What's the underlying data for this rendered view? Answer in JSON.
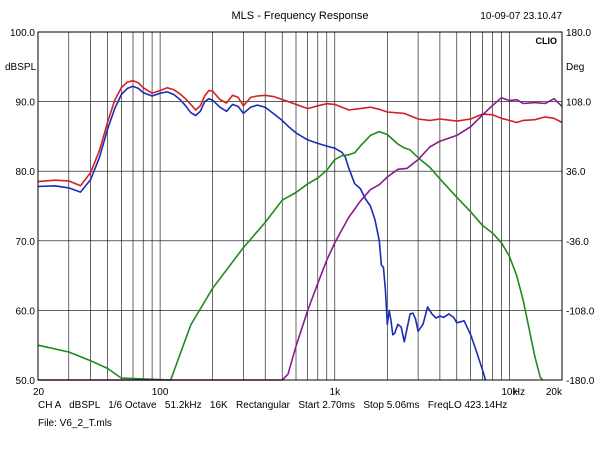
{
  "header": {
    "title": "MLS - Frequency Response",
    "datetime": "10-09-07 23.10.47",
    "logo": "CLIO"
  },
  "footer": {
    "settings": "CH A   dBSPL   1/6 Octave   51.2kHz   16K   Rectangular   Start 2.70ms   Stop 5.06ms   FreqLO 423.14Hz",
    "file": "File: V6_2_T.mls"
  },
  "chart_data": {
    "type": "line",
    "title": "MLS - Frequency Response",
    "xscale": "log",
    "xlim": [
      20,
      20000
    ],
    "ylim": [
      50,
      100
    ],
    "y2lim": [
      -180,
      180
    ],
    "ylabel": "dBSPL",
    "y2label": "Deg",
    "xunit": "Hz",
    "grid": true,
    "x_ticks": [
      {
        "value": 20,
        "label": "20"
      },
      {
        "value": 100,
        "label": "100"
      },
      {
        "value": 1000,
        "label": "1k"
      },
      {
        "value": 10000,
        "label": "10k"
      },
      {
        "value": 20000,
        "label": "20k"
      }
    ],
    "y_ticks": [
      "50.0",
      "60.0",
      "70.0",
      "80.0",
      "90.0",
      "100.0"
    ],
    "y2_ticks": [
      "-180.0",
      "-108.0",
      "-36.0",
      "36.0",
      "108.0",
      "180.0"
    ],
    "series": [
      {
        "color": "#d42020",
        "axis": "left",
        "points": [
          [
            20,
            78.5
          ],
          [
            25,
            78.7
          ],
          [
            30,
            78.6
          ],
          [
            35,
            77.9
          ],
          [
            40,
            79.8
          ],
          [
            45,
            83
          ],
          [
            50,
            87
          ],
          [
            55,
            90.2
          ],
          [
            60,
            92
          ],
          [
            65,
            92.8
          ],
          [
            70,
            93
          ],
          [
            75,
            92.7
          ],
          [
            80,
            92
          ],
          [
            90,
            91.2
          ],
          [
            100,
            91.6
          ],
          [
            110,
            92
          ],
          [
            120,
            91.7
          ],
          [
            130,
            91.1
          ],
          [
            140,
            90.4
          ],
          [
            150,
            89.6
          ],
          [
            160,
            88.8
          ],
          [
            170,
            89.4
          ],
          [
            180,
            90.8
          ],
          [
            190,
            91.6
          ],
          [
            200,
            91.5
          ],
          [
            220,
            90.3
          ],
          [
            240,
            89.8
          ],
          [
            260,
            90.9
          ],
          [
            280,
            90.6
          ],
          [
            300,
            89.4
          ],
          [
            330,
            90.6
          ],
          [
            360,
            90.8
          ],
          [
            400,
            90.9
          ],
          [
            450,
            90.7
          ],
          [
            500,
            90.3
          ],
          [
            600,
            89.6
          ],
          [
            700,
            89
          ],
          [
            800,
            89.4
          ],
          [
            900,
            89.7
          ],
          [
            1000,
            89.6
          ],
          [
            1100,
            89.2
          ],
          [
            1200,
            88.8
          ],
          [
            1400,
            89
          ],
          [
            1600,
            89.2
          ],
          [
            1800,
            88.9
          ],
          [
            2000,
            88.5
          ],
          [
            2500,
            88.3
          ],
          [
            3000,
            87.5
          ],
          [
            3500,
            87.3
          ],
          [
            4000,
            87.5
          ],
          [
            5000,
            87.2
          ],
          [
            6000,
            87.5
          ],
          [
            7000,
            88.2
          ],
          [
            8000,
            88.1
          ],
          [
            9000,
            87.6
          ],
          [
            10000,
            87.3
          ],
          [
            11000,
            87
          ],
          [
            12000,
            87.3
          ],
          [
            14000,
            87.4
          ],
          [
            16000,
            87.8
          ],
          [
            18000,
            87.6
          ],
          [
            20000,
            87
          ]
        ]
      },
      {
        "color": "#1a2bb5",
        "axis": "left",
        "points": [
          [
            20,
            77.8
          ],
          [
            25,
            77.9
          ],
          [
            30,
            77.6
          ],
          [
            35,
            77
          ],
          [
            40,
            78.8
          ],
          [
            45,
            82
          ],
          [
            50,
            86
          ],
          [
            55,
            89
          ],
          [
            60,
            91
          ],
          [
            65,
            91.9
          ],
          [
            70,
            92.2
          ],
          [
            75,
            91.9
          ],
          [
            80,
            91.3
          ],
          [
            90,
            90.8
          ],
          [
            100,
            91.2
          ],
          [
            110,
            91.4
          ],
          [
            120,
            91
          ],
          [
            130,
            90.3
          ],
          [
            140,
            89.4
          ],
          [
            150,
            88.4
          ],
          [
            160,
            88
          ],
          [
            170,
            88.6
          ],
          [
            180,
            90
          ],
          [
            190,
            90.4
          ],
          [
            200,
            90.2
          ],
          [
            220,
            89.2
          ],
          [
            240,
            88.6
          ],
          [
            260,
            89.6
          ],
          [
            280,
            89.3
          ],
          [
            300,
            88.3
          ],
          [
            330,
            89.2
          ],
          [
            360,
            89.5
          ],
          [
            400,
            89.2
          ],
          [
            450,
            88.2
          ],
          [
            500,
            87.3
          ],
          [
            550,
            86.3
          ],
          [
            600,
            85.5
          ],
          [
            700,
            84.5
          ],
          [
            800,
            84
          ],
          [
            900,
            83.6
          ],
          [
            1000,
            83.3
          ],
          [
            1100,
            82.7
          ],
          [
            1150,
            82
          ],
          [
            1200,
            80.5
          ],
          [
            1300,
            78.2
          ],
          [
            1400,
            77.5
          ],
          [
            1500,
            76
          ],
          [
            1600,
            75
          ],
          [
            1700,
            73
          ],
          [
            1800,
            70
          ],
          [
            1850,
            66.5
          ],
          [
            1900,
            66.2
          ],
          [
            1950,
            63
          ],
          [
            2000,
            58
          ],
          [
            2050,
            60
          ],
          [
            2100,
            58.5
          ],
          [
            2150,
            56.5
          ],
          [
            2200,
            56.7
          ],
          [
            2300,
            58
          ],
          [
            2400,
            57.6
          ],
          [
            2500,
            55.5
          ],
          [
            2600,
            57.5
          ],
          [
            2700,
            59.5
          ],
          [
            2800,
            59.6
          ],
          [
            2900,
            58.8
          ],
          [
            3000,
            57
          ],
          [
            3200,
            58
          ],
          [
            3400,
            60.5
          ],
          [
            3600,
            59.5
          ],
          [
            3800,
            58.9
          ],
          [
            4000,
            59.2
          ],
          [
            4200,
            59
          ],
          [
            4500,
            59.5
          ],
          [
            4800,
            59
          ],
          [
            5000,
            58.2
          ],
          [
            5500,
            58.5
          ],
          [
            6000,
            56.5
          ],
          [
            6500,
            54
          ],
          [
            7000,
            51.5
          ],
          [
            7300,
            50
          ]
        ]
      },
      {
        "color": "#1e8a1e",
        "axis": "right",
        "points": [
          [
            20,
            -144
          ],
          [
            30,
            -151
          ],
          [
            40,
            -160
          ],
          [
            50,
            -168
          ],
          [
            60,
            -178
          ],
          [
            115,
            -180
          ],
          [
            125,
            -162
          ],
          [
            150,
            -123
          ],
          [
            200,
            -85
          ],
          [
            300,
            -43
          ],
          [
            400,
            -17
          ],
          [
            500,
            6
          ],
          [
            600,
            14
          ],
          [
            700,
            23
          ],
          [
            800,
            29
          ],
          [
            900,
            37
          ],
          [
            1000,
            48
          ],
          [
            1100,
            52
          ],
          [
            1200,
            53
          ],
          [
            1300,
            55
          ],
          [
            1400,
            62
          ],
          [
            1600,
            73
          ],
          [
            1800,
            77
          ],
          [
            2000,
            74
          ],
          [
            2300,
            64
          ],
          [
            2500,
            60
          ],
          [
            2700,
            58
          ],
          [
            3000,
            50
          ],
          [
            3500,
            40
          ],
          [
            4000,
            28
          ],
          [
            4500,
            18
          ],
          [
            5000,
            9
          ],
          [
            6000,
            -6
          ],
          [
            7000,
            -20
          ],
          [
            8000,
            -28
          ],
          [
            9000,
            -38
          ],
          [
            10000,
            -52
          ],
          [
            11000,
            -72
          ],
          [
            12000,
            -98
          ],
          [
            13000,
            -128
          ],
          [
            14000,
            -156
          ],
          [
            15000,
            -177
          ],
          [
            15500,
            -180
          ]
        ]
      },
      {
        "color": "#8b1a8b",
        "axis": "right",
        "points": [
          [
            20,
            -180
          ],
          [
            200,
            -180
          ],
          [
            500,
            -180
          ],
          [
            540,
            -174
          ],
          [
            600,
            -145
          ],
          [
            700,
            -108
          ],
          [
            800,
            -80
          ],
          [
            900,
            -56
          ],
          [
            1000,
            -38
          ],
          [
            1200,
            -12
          ],
          [
            1400,
            5
          ],
          [
            1600,
            17
          ],
          [
            1800,
            22
          ],
          [
            2000,
            30
          ],
          [
            2300,
            38
          ],
          [
            2600,
            39
          ],
          [
            3000,
            48
          ],
          [
            3500,
            61
          ],
          [
            4000,
            67
          ],
          [
            5000,
            73
          ],
          [
            6000,
            82
          ],
          [
            7000,
            94
          ],
          [
            8000,
            104
          ],
          [
            9000,
            112
          ],
          [
            10000,
            109
          ],
          [
            11000,
            110
          ],
          [
            12000,
            106
          ],
          [
            14000,
            107
          ],
          [
            16000,
            106
          ],
          [
            18000,
            111
          ],
          [
            20000,
            103
          ]
        ]
      }
    ]
  }
}
